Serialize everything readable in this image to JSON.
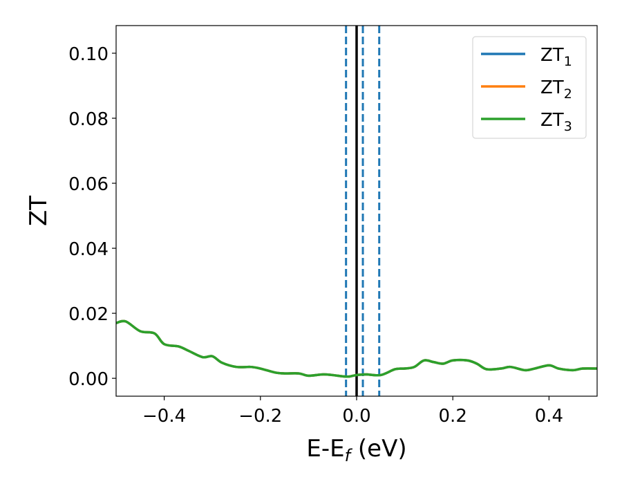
{
  "chart_data": {
    "type": "line",
    "xlabel": "E-E",
    "xlabel_sub": "f",
    "xlabel_unit": " (eV)",
    "ylabel": "ZT",
    "xlim": [
      -0.5,
      0.5
    ],
    "ylim": [
      -0.0055,
      0.1085
    ],
    "xticks": [
      -0.4,
      -0.2,
      0.0,
      0.2,
      0.4
    ],
    "xtick_labels": [
      "−0.4",
      "−0.2",
      "0.0",
      "0.2",
      "0.4"
    ],
    "yticks": [
      0.0,
      0.02,
      0.04,
      0.06,
      0.08,
      0.1
    ],
    "ytick_labels": [
      "0.00",
      "0.02",
      "0.04",
      "0.06",
      "0.08",
      "0.10"
    ],
    "grid": false,
    "legend_position": "top-right",
    "series": [
      {
        "name": "ZT",
        "sub": "1",
        "color": "#1f77b4",
        "x": [
          -0.5,
          -0.48,
          -0.45,
          -0.42,
          -0.4,
          -0.37,
          -0.35,
          -0.32,
          -0.3,
          -0.28,
          -0.25,
          -0.22,
          -0.2,
          -0.17,
          -0.15,
          -0.12,
          -0.1,
          -0.07,
          -0.05,
          -0.02,
          0.0,
          0.02,
          0.05,
          0.08,
          0.1,
          0.12,
          0.14,
          0.16,
          0.18,
          0.2,
          0.23,
          0.25,
          0.27,
          0.3,
          0.32,
          0.35,
          0.37,
          0.4,
          0.42,
          0.45,
          0.47,
          0.5
        ],
        "y": [
          0.017,
          0.0175,
          0.0145,
          0.0138,
          0.0105,
          0.0098,
          0.0085,
          0.0065,
          0.0068,
          0.0048,
          0.0035,
          0.0035,
          0.003,
          0.0018,
          0.0015,
          0.0015,
          0.0008,
          0.0012,
          0.001,
          0.0005,
          0.001,
          0.0012,
          0.001,
          0.0028,
          0.003,
          0.0035,
          0.0055,
          0.005,
          0.0045,
          0.0055,
          0.0055,
          0.0045,
          0.0028,
          0.003,
          0.0035,
          0.0025,
          0.003,
          0.004,
          0.003,
          0.0025,
          0.003,
          0.003
        ]
      },
      {
        "name": "ZT",
        "sub": "2",
        "color": "#ff7f0e",
        "x": [
          -0.5,
          -0.48,
          -0.45,
          -0.42,
          -0.4,
          -0.37,
          -0.35,
          -0.32,
          -0.3,
          -0.28,
          -0.25,
          -0.22,
          -0.2,
          -0.17,
          -0.15,
          -0.12,
          -0.1,
          -0.07,
          -0.05,
          -0.02,
          0.0,
          0.02,
          0.05,
          0.08,
          0.1,
          0.12,
          0.14,
          0.16,
          0.18,
          0.2,
          0.23,
          0.25,
          0.27,
          0.3,
          0.32,
          0.35,
          0.37,
          0.4,
          0.42,
          0.45,
          0.47,
          0.5
        ],
        "y": [
          0.017,
          0.0175,
          0.0145,
          0.0138,
          0.0105,
          0.0098,
          0.0085,
          0.0065,
          0.0068,
          0.0048,
          0.0035,
          0.0035,
          0.003,
          0.0018,
          0.0015,
          0.0015,
          0.0008,
          0.0012,
          0.001,
          0.0005,
          0.001,
          0.0012,
          0.001,
          0.0028,
          0.003,
          0.0035,
          0.0055,
          0.005,
          0.0045,
          0.0055,
          0.0055,
          0.0045,
          0.0028,
          0.003,
          0.0035,
          0.0025,
          0.003,
          0.004,
          0.003,
          0.0025,
          0.003,
          0.003
        ]
      },
      {
        "name": "ZT",
        "sub": "3",
        "color": "#2ca02c",
        "x": [
          -0.5,
          -0.48,
          -0.45,
          -0.42,
          -0.4,
          -0.37,
          -0.35,
          -0.32,
          -0.3,
          -0.28,
          -0.25,
          -0.22,
          -0.2,
          -0.17,
          -0.15,
          -0.12,
          -0.1,
          -0.07,
          -0.05,
          -0.02,
          0.0,
          0.02,
          0.05,
          0.08,
          0.1,
          0.12,
          0.14,
          0.16,
          0.18,
          0.2,
          0.23,
          0.25,
          0.27,
          0.3,
          0.32,
          0.35,
          0.37,
          0.4,
          0.42,
          0.45,
          0.47,
          0.5
        ],
        "y": [
          0.017,
          0.0175,
          0.0145,
          0.0138,
          0.0105,
          0.0098,
          0.0085,
          0.0065,
          0.0068,
          0.0048,
          0.0035,
          0.0035,
          0.003,
          0.0018,
          0.0015,
          0.0015,
          0.0008,
          0.0012,
          0.001,
          0.0005,
          0.001,
          0.0012,
          0.001,
          0.0028,
          0.003,
          0.0035,
          0.0055,
          0.005,
          0.0045,
          0.0055,
          0.0055,
          0.0045,
          0.0028,
          0.003,
          0.0035,
          0.0025,
          0.003,
          0.004,
          0.003,
          0.0025,
          0.003,
          0.003
        ]
      }
    ],
    "vlines": [
      {
        "x": -0.022,
        "style": "dashed",
        "color": "#1f77b4"
      },
      {
        "x": 0.0,
        "style": "solid",
        "color": "#000000"
      },
      {
        "x": 0.013,
        "style": "dashed",
        "color": "#1f77b4"
      },
      {
        "x": 0.047,
        "style": "dashed",
        "color": "#1f77b4"
      }
    ]
  }
}
